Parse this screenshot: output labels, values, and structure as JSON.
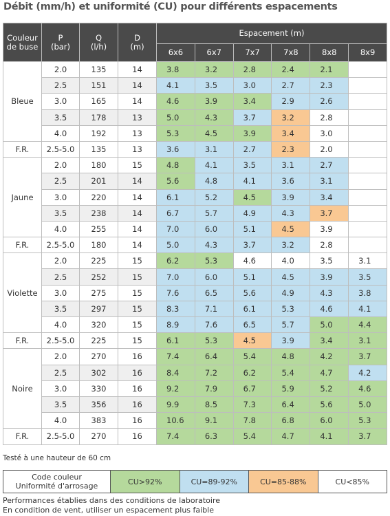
{
  "title": "Débit (mm/h) et uniformité (CU) pour différents espacements",
  "table": {
    "header": {
      "buse": "Couleur\nde buse",
      "p": "P\n(bar)",
      "q": "Q\n(l/h)",
      "d": "D\n(m)",
      "espacement": "Espacement (m)",
      "spacings": [
        "6x6",
        "6x7",
        "7x7",
        "7x8",
        "8x8",
        "8x9"
      ]
    },
    "groups": [
      {
        "label": "Bleue",
        "rows": [
          {
            "p": "2.0",
            "q": "135",
            "d": "14",
            "values": [
              "3.8",
              "3.2",
              "2.8",
              "2.4",
              "2.1",
              null
            ],
            "fills": [
              "#b5d99c",
              "#b5d99c",
              "#b5d99c",
              "#b5d99c",
              "#b5d99c",
              "#ffffff"
            ]
          },
          {
            "p": "2.5",
            "q": "151",
            "d": "14",
            "values": [
              "4.1",
              "3.5",
              "3.0",
              "2.7",
              "2.3",
              null
            ],
            "fills": [
              "#c0dff0",
              "#c0dff0",
              "#c0dff0",
              "#c0dff0",
              "#c0dff0",
              "#ffffff"
            ]
          },
          {
            "p": "3.0",
            "q": "165",
            "d": "14",
            "values": [
              "4.6",
              "3.9",
              "3.4",
              "2.9",
              "2.6",
              null
            ],
            "fills": [
              "#b5d99c",
              "#b5d99c",
              "#b5d99c",
              "#c0dff0",
              "#c0dff0",
              "#ffffff"
            ]
          },
          {
            "p": "3.5",
            "q": "178",
            "d": "13",
            "values": [
              "5.0",
              "4.3",
              "3.7",
              "3.2",
              "2.8",
              null
            ],
            "fills": [
              "#b5d99c",
              "#b5d99c",
              "#c0dff0",
              "#f9c893",
              "#ffffff",
              "#ffffff"
            ]
          },
          {
            "p": "4.0",
            "q": "192",
            "d": "13",
            "values": [
              "5.3",
              "4.5",
              "3.9",
              "3.4",
              "3.0",
              null
            ],
            "fills": [
              "#b5d99c",
              "#b5d99c",
              "#b5d99c",
              "#f9c893",
              "#ffffff",
              "#ffffff"
            ]
          }
        ]
      },
      {
        "label": "F.R.",
        "rows": [
          {
            "p": "2.5-5.0",
            "q": "135",
            "d": "13",
            "values": [
              "3.6",
              "3.1",
              "2.7",
              "2.3",
              "2.0",
              null
            ],
            "fills": [
              "#c0dff0",
              "#c0dff0",
              "#c0dff0",
              "#f9c893",
              "#ffffff",
              "#ffffff"
            ]
          }
        ]
      },
      {
        "label": "Jaune",
        "rows": [
          {
            "p": "2.0",
            "q": "180",
            "d": "15",
            "values": [
              "4.8",
              "4.1",
              "3.5",
              "3.1",
              "2.7",
              null
            ],
            "fills": [
              "#b5d99c",
              "#c0dff0",
              "#c0dff0",
              "#c0dff0",
              "#c0dff0",
              "#ffffff"
            ]
          },
          {
            "p": "2.5",
            "q": "201",
            "d": "14",
            "values": [
              "5.6",
              "4.8",
              "4.1",
              "3.6",
              "3.1",
              null
            ],
            "fills": [
              "#b5d99c",
              "#c0dff0",
              "#c0dff0",
              "#c0dff0",
              "#c0dff0",
              "#ffffff"
            ]
          },
          {
            "p": "3.0",
            "q": "220",
            "d": "14",
            "values": [
              "6.1",
              "5.2",
              "4.5",
              "3.9",
              "3.4",
              null
            ],
            "fills": [
              "#c0dff0",
              "#c0dff0",
              "#b5d99c",
              "#c0dff0",
              "#c0dff0",
              "#ffffff"
            ]
          },
          {
            "p": "3.5",
            "q": "238",
            "d": "14",
            "values": [
              "6.7",
              "5.7",
              "4.9",
              "4.3",
              "3.7",
              null
            ],
            "fills": [
              "#c0dff0",
              "#c0dff0",
              "#c0dff0",
              "#c0dff0",
              "#f9c893",
              "#ffffff"
            ]
          },
          {
            "p": "4.0",
            "q": "255",
            "d": "14",
            "values": [
              "7.0",
              "6.0",
              "5.1",
              "4.5",
              "3.9",
              null
            ],
            "fills": [
              "#c0dff0",
              "#c0dff0",
              "#c0dff0",
              "#f9c893",
              "#ffffff",
              "#ffffff"
            ]
          }
        ]
      },
      {
        "label": "F.R.",
        "rows": [
          {
            "p": "2.5-5.0",
            "q": "180",
            "d": "14",
            "values": [
              "5.0",
              "4.3",
              "3.7",
              "3.2",
              "2.8",
              null
            ],
            "fills": [
              "#c0dff0",
              "#c0dff0",
              "#c0dff0",
              "#c0dff0",
              "#ffffff",
              "#ffffff"
            ]
          }
        ]
      },
      {
        "label": "Violette",
        "rows": [
          {
            "p": "2.0",
            "q": "225",
            "d": "15",
            "values": [
              "6.2",
              "5.3",
              "4.6",
              "4.0",
              "3.5",
              "3.1"
            ],
            "fills": [
              "#b5d99c",
              "#b5d99c",
              "#ffffff",
              "#ffffff",
              "#ffffff",
              "#ffffff"
            ]
          },
          {
            "p": "2.5",
            "q": "252",
            "d": "15",
            "values": [
              "7.0",
              "6.0",
              "5.1",
              "4.5",
              "3.9",
              "3.5"
            ],
            "fills": [
              "#c0dff0",
              "#c0dff0",
              "#c0dff0",
              "#c0dff0",
              "#c0dff0",
              "#c0dff0"
            ]
          },
          {
            "p": "3.0",
            "q": "275",
            "d": "15",
            "values": [
              "7.6",
              "6.5",
              "5.6",
              "4.9",
              "4.3",
              "3.8"
            ],
            "fills": [
              "#c0dff0",
              "#c0dff0",
              "#c0dff0",
              "#c0dff0",
              "#c0dff0",
              "#c0dff0"
            ]
          },
          {
            "p": "3.5",
            "q": "297",
            "d": "15",
            "values": [
              "8.3",
              "7.1",
              "6.1",
              "5.3",
              "4.6",
              "4.1"
            ],
            "fills": [
              "#c0dff0",
              "#c0dff0",
              "#c0dff0",
              "#c0dff0",
              "#c0dff0",
              "#c0dff0"
            ]
          },
          {
            "p": "4.0",
            "q": "320",
            "d": "15",
            "values": [
              "8.9",
              "7.6",
              "6.5",
              "5.7",
              "5.0",
              "4.4"
            ],
            "fills": [
              "#c0dff0",
              "#c0dff0",
              "#c0dff0",
              "#c0dff0",
              "#b5d99c",
              "#b5d99c"
            ]
          }
        ]
      },
      {
        "label": "F.R.",
        "rows": [
          {
            "p": "2.5-5.0",
            "q": "225",
            "d": "15",
            "values": [
              "6.1",
              "5.3",
              "4.5",
              "3.9",
              "3.4",
              "3.1"
            ],
            "fills": [
              "#b5d99c",
              "#b5d99c",
              "#f9c893",
              "#c0dff0",
              "#b5d99c",
              "#b5d99c"
            ]
          }
        ]
      },
      {
        "label": "Noire",
        "rows": [
          {
            "p": "2.0",
            "q": "270",
            "d": "16",
            "values": [
              "7.4",
              "6.4",
              "5.4",
              "4.8",
              "4.2",
              "3.7"
            ],
            "fills": [
              "#b5d99c",
              "#b5d99c",
              "#b5d99c",
              "#b5d99c",
              "#b5d99c",
              "#b5d99c"
            ]
          },
          {
            "p": "2.5",
            "q": "302",
            "d": "16",
            "values": [
              "8.4",
              "7.2",
              "6.2",
              "5.4",
              "4.7",
              "4.2"
            ],
            "fills": [
              "#b5d99c",
              "#b5d99c",
              "#b5d99c",
              "#b5d99c",
              "#b5d99c",
              "#c0dff0"
            ]
          },
          {
            "p": "3.0",
            "q": "330",
            "d": "16",
            "values": [
              "9.2",
              "7.9",
              "6.7",
              "5.9",
              "5.2",
              "4.6"
            ],
            "fills": [
              "#b5d99c",
              "#b5d99c",
              "#b5d99c",
              "#b5d99c",
              "#b5d99c",
              "#b5d99c"
            ]
          },
          {
            "p": "3.5",
            "q": "356",
            "d": "16",
            "values": [
              "9.9",
              "8.5",
              "7.3",
              "6.4",
              "5.6",
              "5.0"
            ],
            "fills": [
              "#b5d99c",
              "#b5d99c",
              "#b5d99c",
              "#b5d99c",
              "#b5d99c",
              "#b5d99c"
            ]
          },
          {
            "p": "4.0",
            "q": "383",
            "d": "16",
            "values": [
              "10.6",
              "9.1",
              "7.8",
              "6.8",
              "6.0",
              "5.3"
            ],
            "fills": [
              "#b5d99c",
              "#b5d99c",
              "#b5d99c",
              "#b5d99c",
              "#b5d99c",
              "#b5d99c"
            ]
          }
        ]
      },
      {
        "label": "F.R.",
        "rows": [
          {
            "p": "2.5-5.0",
            "q": "270",
            "d": "16",
            "values": [
              "7.4",
              "6.3",
              "5.4",
              "4.7",
              "4.1",
              "3.7"
            ],
            "fills": [
              "#b5d99c",
              "#b5d99c",
              "#b5d99c",
              "#b5d99c",
              "#b5d99c",
              "#b5d99c"
            ]
          }
        ]
      }
    ]
  },
  "note": "Testé à une hauteur de 60 cm",
  "legend": {
    "title": "Code couleur\nUniformité d'arrosage",
    "items": [
      {
        "label": "CU>92%",
        "color": "#b5d99c"
      },
      {
        "label": "CU=89-92%",
        "color": "#c0dff0"
      },
      {
        "label": "CU=85-88%",
        "color": "#f9c893"
      },
      {
        "label": "CU<85%",
        "color": "#ffffff"
      }
    ]
  },
  "footer": [
    "Performances établies dans des conditions de laboratoire",
    "En condition de vent, utiliser un espacement plus faible"
  ]
}
